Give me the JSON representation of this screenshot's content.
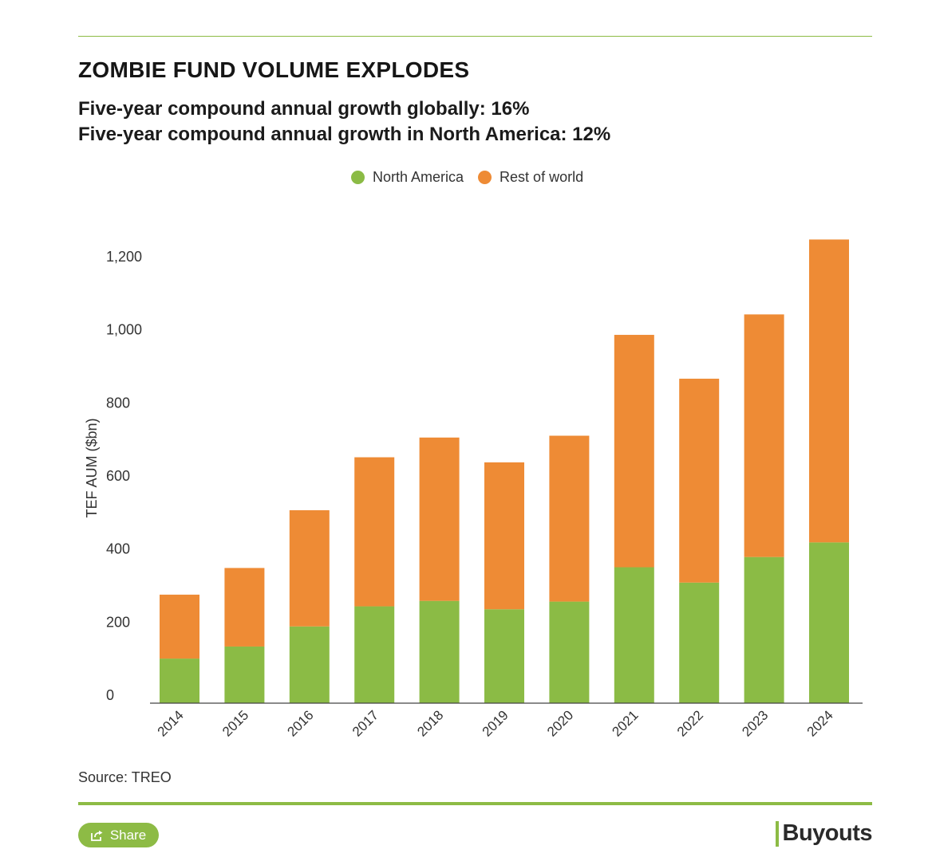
{
  "title": "ZOMBIE FUND VOLUME EXPLODES",
  "subtitle_lines": [
    "Five-year compound annual growth globally: 16%",
    "Five-year compound annual growth in North America: 12%"
  ],
  "source": "Source: TREO",
  "share_label": "Share",
  "brand": "Buyouts",
  "colors": {
    "accent": "#8dbb45",
    "north_america": "#8bbb45",
    "rest_of_world": "#ee8b35"
  },
  "chart_data": {
    "type": "bar",
    "stacked": true,
    "categories": [
      "2014",
      "2015",
      "2016",
      "2017",
      "2018",
      "2019",
      "2020",
      "2021",
      "2022",
      "2023",
      "2024"
    ],
    "series": [
      {
        "name": "North America",
        "values": [
          122,
          155,
          210,
          265,
          280,
          257,
          278,
          372,
          330,
          400,
          440
        ]
      },
      {
        "name": "Rest of world",
        "values": [
          175,
          215,
          318,
          408,
          447,
          402,
          454,
          636,
          558,
          664,
          829
        ]
      }
    ],
    "ylabel": "TEF AUM ($bn)",
    "xlabel": "",
    "yticks": [
      0,
      200,
      400,
      600,
      800,
      1000,
      1200
    ],
    "ytick_labels": [
      "0",
      "200",
      "400",
      "600",
      "800",
      "1,000",
      "1,200"
    ],
    "ylim": [
      0,
      1300
    ],
    "legend_position": "top-center"
  }
}
